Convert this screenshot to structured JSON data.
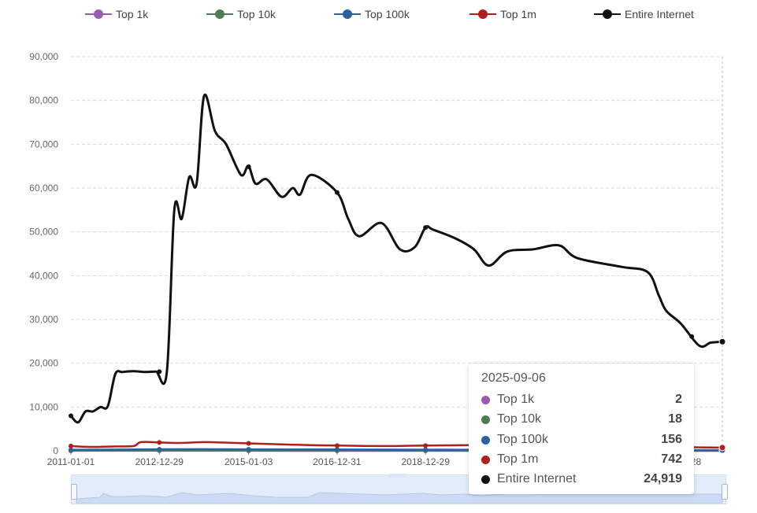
{
  "chart_data": {
    "type": "line",
    "ylim": [
      0,
      90000
    ],
    "y_ticks": [
      "0",
      "10,000",
      "20,000",
      "30,000",
      "40,000",
      "50,000",
      "60,000",
      "70,000",
      "80,000",
      "90,000"
    ],
    "x_ticks": [
      "2011-01-01",
      "2012-12-29",
      "2015-01-03",
      "2016-12-31",
      "2018-12-29",
      "2024-12-28"
    ],
    "x_tick_labels_visible": [
      "2011-01-01",
      "2012-12-29",
      "2015-01-03",
      "2016-12-31",
      "2018-12-29",
      "2-28"
    ],
    "x_range": [
      "2011-01-01",
      "2025-09-06"
    ],
    "grid": true,
    "legend_position": "top",
    "series": [
      {
        "name": "Top 1k",
        "color": "#9b59b6",
        "points": [
          [
            "2011-01-01",
            10
          ],
          [
            "2013-01-01",
            12
          ],
          [
            "2015-01-01",
            10
          ],
          [
            "2017-01-01",
            8
          ],
          [
            "2019-01-01",
            6
          ],
          [
            "2021-01-01",
            5
          ],
          [
            "2023-01-01",
            3
          ],
          [
            "2025-09-06",
            2
          ]
        ]
      },
      {
        "name": "Top 10k",
        "color": "#4e7d52",
        "points": [
          [
            "2011-01-01",
            60
          ],
          [
            "2013-01-01",
            90
          ],
          [
            "2015-01-01",
            80
          ],
          [
            "2017-01-01",
            60
          ],
          [
            "2019-01-01",
            50
          ],
          [
            "2021-01-01",
            40
          ],
          [
            "2023-01-01",
            25
          ],
          [
            "2025-09-06",
            18
          ]
        ]
      },
      {
        "name": "Top 100k",
        "color": "#2a62a0",
        "points": [
          [
            "2011-01-01",
            250
          ],
          [
            "2012-01-01",
            280
          ],
          [
            "2013-01-01",
            360
          ],
          [
            "2014-01-01",
            380
          ],
          [
            "2015-01-01",
            350
          ],
          [
            "2016-01-01",
            330
          ],
          [
            "2017-01-01",
            300
          ],
          [
            "2018-01-01",
            280
          ],
          [
            "2019-01-01",
            270
          ],
          [
            "2020-01-01",
            260
          ],
          [
            "2021-01-01",
            240
          ],
          [
            "2022-01-01",
            220
          ],
          [
            "2023-01-01",
            200
          ],
          [
            "2024-01-01",
            180
          ],
          [
            "2025-09-06",
            156
          ]
        ]
      },
      {
        "name": "Top 1m",
        "color": "#b01e1e",
        "points": [
          [
            "2011-01-01",
            1100
          ],
          [
            "2011-06-01",
            900
          ],
          [
            "2012-01-01",
            1000
          ],
          [
            "2012-06-01",
            1100
          ],
          [
            "2012-08-01",
            2000
          ],
          [
            "2013-01-01",
            1900
          ],
          [
            "2013-06-01",
            1800
          ],
          [
            "2014-01-01",
            2000
          ],
          [
            "2014-06-01",
            1900
          ],
          [
            "2015-01-01",
            1700
          ],
          [
            "2016-01-01",
            1400
          ],
          [
            "2017-01-01",
            1200
          ],
          [
            "2018-01-01",
            1100
          ],
          [
            "2019-01-01",
            1200
          ],
          [
            "2020-01-01",
            1300
          ],
          [
            "2021-01-01",
            1200
          ],
          [
            "2022-01-01",
            1100
          ],
          [
            "2023-01-01",
            1000
          ],
          [
            "2024-01-01",
            900
          ],
          [
            "2025-01-01",
            800
          ],
          [
            "2025-09-06",
            742
          ]
        ]
      },
      {
        "name": "Entire Internet",
        "color": "#111111",
        "points": [
          [
            "2011-01-01",
            8000
          ],
          [
            "2011-03-01",
            6500
          ],
          [
            "2011-05-01",
            9000
          ],
          [
            "2011-07-01",
            9000
          ],
          [
            "2011-09-01",
            10000
          ],
          [
            "2011-11-01",
            10200
          ],
          [
            "2012-01-01",
            17500
          ],
          [
            "2012-03-01",
            18000
          ],
          [
            "2012-06-01",
            18200
          ],
          [
            "2012-09-01",
            18000
          ],
          [
            "2012-12-01",
            18100
          ],
          [
            "2013-03-01",
            18000
          ],
          [
            "2013-05-01",
            55000
          ],
          [
            "2013-07-01",
            53000
          ],
          [
            "2013-09-01",
            62500
          ],
          [
            "2013-11-01",
            61000
          ],
          [
            "2014-01-01",
            81000
          ],
          [
            "2014-04-01",
            73000
          ],
          [
            "2014-07-01",
            70000
          ],
          [
            "2014-11-01",
            63000
          ],
          [
            "2015-01-01",
            65000
          ],
          [
            "2015-03-01",
            61000
          ],
          [
            "2015-06-01",
            62000
          ],
          [
            "2015-10-01",
            58000
          ],
          [
            "2016-01-01",
            60000
          ],
          [
            "2016-03-01",
            58500
          ],
          [
            "2016-06-01",
            63000
          ],
          [
            "2016-12-31",
            59000
          ],
          [
            "2017-04-01",
            53000
          ],
          [
            "2017-07-01",
            49000
          ],
          [
            "2018-01-01",
            52000
          ],
          [
            "2018-06-01",
            46000
          ],
          [
            "2018-10-01",
            46500
          ],
          [
            "2018-12-29",
            51000
          ],
          [
            "2019-03-01",
            50500
          ],
          [
            "2019-09-01",
            48500
          ],
          [
            "2020-02-01",
            46000
          ],
          [
            "2020-06-01",
            42300
          ],
          [
            "2020-11-01",
            45500
          ],
          [
            "2021-06-01",
            46000
          ],
          [
            "2022-01-01",
            46900
          ],
          [
            "2022-06-01",
            44000
          ],
          [
            "2023-06-01",
            42000
          ],
          [
            "2024-01-01",
            40800
          ],
          [
            "2024-04-01",
            35500
          ],
          [
            "2024-06-01",
            32000
          ],
          [
            "2024-10-01",
            29000
          ],
          [
            "2025-03-01",
            24000
          ],
          [
            "2025-06-01",
            24700
          ],
          [
            "2025-09-06",
            24919
          ]
        ]
      }
    ]
  },
  "tooltip": {
    "date": "2025-09-06",
    "rows": [
      {
        "name": "Top 1k",
        "value": "2"
      },
      {
        "name": "Top 10k",
        "value": "18"
      },
      {
        "name": "Top 100k",
        "value": "156"
      },
      {
        "name": "Top 1m",
        "value": "742"
      },
      {
        "name": "Entire Internet",
        "value": "24,919"
      }
    ]
  },
  "slider": {
    "range_start_fraction": 0,
    "range_end_fraction": 1
  }
}
